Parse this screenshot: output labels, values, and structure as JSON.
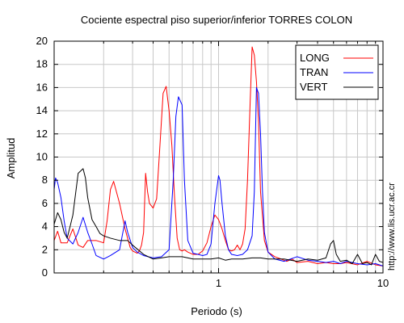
{
  "chart_data": {
    "type": "line",
    "title": "Cociente espectral piso superior/inferior  TORRES COLON",
    "xlabel": "Periodo (s)",
    "ylabel": "Amplitud",
    "xscale": "log",
    "xlim": [
      0.1,
      10
    ],
    "ylim": [
      0,
      20
    ],
    "x_ticks": [
      1,
      10
    ],
    "y_ticks": [
      0,
      2,
      4,
      6,
      8,
      10,
      12,
      14,
      16,
      18,
      20
    ],
    "grid": true,
    "legend_position": "top-right",
    "watermark": "http://www.lis.ucr.ac.cr",
    "series": [
      {
        "name": "LONG",
        "color": "#ff0000",
        "x": [
          0.1,
          0.105,
          0.11,
          0.12,
          0.13,
          0.14,
          0.15,
          0.16,
          0.18,
          0.2,
          0.21,
          0.22,
          0.23,
          0.25,
          0.27,
          0.29,
          0.3,
          0.31,
          0.32,
          0.33,
          0.34,
          0.35,
          0.36,
          0.37,
          0.38,
          0.4,
          0.42,
          0.44,
          0.46,
          0.48,
          0.5,
          0.52,
          0.54,
          0.56,
          0.58,
          0.6,
          0.62,
          0.65,
          0.7,
          0.75,
          0.8,
          0.85,
          0.9,
          0.95,
          1.0,
          1.05,
          1.1,
          1.15,
          1.2,
          1.25,
          1.3,
          1.35,
          1.4,
          1.45,
          1.5,
          1.55,
          1.6,
          1.65,
          1.7,
          1.75,
          1.8,
          1.9,
          2.0,
          2.2,
          2.4,
          2.6,
          2.8,
          3.0,
          3.5,
          4.0,
          4.5,
          5.0,
          5.5,
          6.0,
          7.0,
          8.0,
          9.0,
          10.0
        ],
        "y": [
          2.8,
          3.6,
          2.6,
          2.6,
          3.8,
          2.4,
          2.2,
          2.8,
          2.8,
          2.6,
          4.5,
          7.2,
          7.9,
          6.0,
          3.8,
          2.2,
          1.9,
          1.8,
          1.7,
          1.9,
          2.4,
          3.5,
          8.6,
          7.0,
          6.0,
          5.6,
          6.4,
          11.0,
          15.5,
          16.1,
          14.0,
          11.0,
          6.5,
          3.0,
          2.0,
          1.9,
          2.0,
          1.8,
          1.6,
          1.6,
          1.9,
          2.6,
          4.0,
          5.0,
          4.6,
          3.8,
          2.8,
          2.0,
          1.9,
          2.0,
          2.4,
          2.0,
          2.5,
          3.8,
          8.0,
          14.0,
          19.5,
          18.8,
          16.5,
          13.0,
          7.0,
          2.8,
          1.8,
          1.4,
          1.2,
          1.0,
          1.2,
          0.9,
          1.0,
          0.8,
          0.9,
          0.8,
          0.8,
          0.9,
          0.7,
          1.0,
          0.7,
          0.6
        ]
      },
      {
        "name": "TRAN",
        "color": "#0000ff",
        "x": [
          0.1,
          0.102,
          0.105,
          0.11,
          0.115,
          0.12,
          0.13,
          0.14,
          0.15,
          0.16,
          0.17,
          0.18,
          0.2,
          0.22,
          0.25,
          0.27,
          0.28,
          0.3,
          0.32,
          0.35,
          0.4,
          0.45,
          0.5,
          0.53,
          0.55,
          0.57,
          0.6,
          0.62,
          0.65,
          0.7,
          0.75,
          0.8,
          0.85,
          0.9,
          0.95,
          1.0,
          1.02,
          1.05,
          1.1,
          1.15,
          1.2,
          1.3,
          1.4,
          1.5,
          1.6,
          1.65,
          1.7,
          1.75,
          1.8,
          1.85,
          1.9,
          2.0,
          2.2,
          2.5,
          3.0,
          3.5,
          4.0,
          4.5,
          5.0,
          5.5,
          6.0,
          7.0,
          8.0,
          9.0,
          10.0
        ],
        "y": [
          7.2,
          8.2,
          7.8,
          6.5,
          4.5,
          3.0,
          2.5,
          3.5,
          4.8,
          3.5,
          2.5,
          1.5,
          1.2,
          1.5,
          2.0,
          4.5,
          3.5,
          2.2,
          1.8,
          1.5,
          1.3,
          1.4,
          2.0,
          8.0,
          13.5,
          15.2,
          14.5,
          8.0,
          2.8,
          1.7,
          1.6,
          1.5,
          1.6,
          2.5,
          6.0,
          8.4,
          8.0,
          6.0,
          3.2,
          2.0,
          1.6,
          1.5,
          1.6,
          2.0,
          3.2,
          7.0,
          16.0,
          15.5,
          12.0,
          7.0,
          3.5,
          1.8,
          1.2,
          1.0,
          1.4,
          1.1,
          1.0,
          0.9,
          1.0,
          0.8,
          1.0,
          0.8,
          0.7,
          0.8,
          0.6
        ]
      },
      {
        "name": "VERT",
        "color": "#000000",
        "x": [
          0.1,
          0.105,
          0.11,
          0.115,
          0.12,
          0.125,
          0.13,
          0.14,
          0.15,
          0.155,
          0.16,
          0.17,
          0.18,
          0.19,
          0.2,
          0.22,
          0.25,
          0.28,
          0.3,
          0.35,
          0.4,
          0.45,
          0.5,
          0.6,
          0.7,
          0.8,
          0.9,
          1.0,
          1.1,
          1.2,
          1.4,
          1.6,
          1.8,
          2.0,
          2.5,
          3.0,
          3.5,
          4.0,
          4.5,
          4.8,
          5.0,
          5.2,
          5.5,
          6.0,
          6.5,
          7.0,
          7.5,
          8.0,
          8.5,
          9.0,
          9.5,
          10.0
        ],
        "y": [
          4.2,
          5.2,
          4.6,
          3.5,
          3.0,
          4.0,
          5.0,
          8.6,
          9.0,
          8.2,
          6.5,
          4.6,
          4.0,
          3.4,
          3.2,
          3.0,
          2.8,
          2.8,
          2.4,
          1.6,
          1.2,
          1.3,
          1.4,
          1.4,
          1.2,
          1.2,
          1.2,
          1.3,
          1.1,
          1.2,
          1.2,
          1.3,
          1.3,
          1.2,
          1.2,
          1.0,
          1.2,
          1.1,
          1.3,
          2.5,
          2.8,
          1.6,
          1.0,
          1.1,
          0.8,
          1.6,
          0.8,
          0.9,
          0.7,
          1.6,
          1.0,
          0.9
        ]
      }
    ]
  }
}
